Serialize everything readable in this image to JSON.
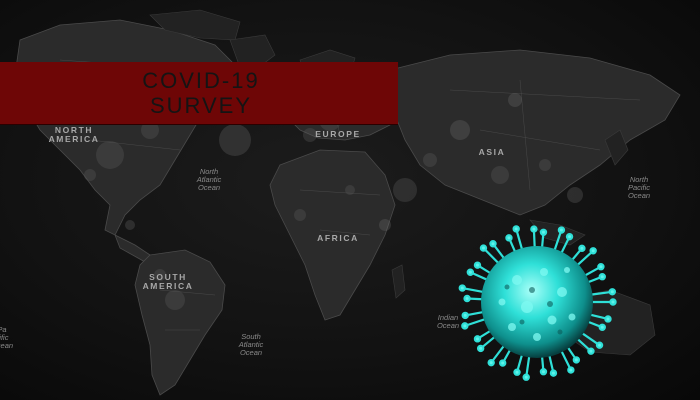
{
  "banner": {
    "line1": "COVID-19",
    "line2": "SURVEY",
    "color": "#6e0606"
  },
  "map_labels": {
    "north_america": "NORTH\nAMERICA",
    "south_america": "SOUTH\nAMERICA",
    "europe": "EUROPE",
    "africa": "AFRICA",
    "asia": "ASIA",
    "north_atlantic": "North\nAtlantic\nOcean",
    "south_atlantic": "South\nAtlantic\nOcean",
    "north_pacific": "North\nPacific\nOcean",
    "indian": "Indian\nOcean",
    "left_partial": "Pa\ncific\nOcean"
  },
  "colors": {
    "background": "#0e0e0e",
    "virus": "#2fe0d8"
  },
  "icons": {
    "virus": "coronavirus-icon",
    "map": "world-map"
  }
}
